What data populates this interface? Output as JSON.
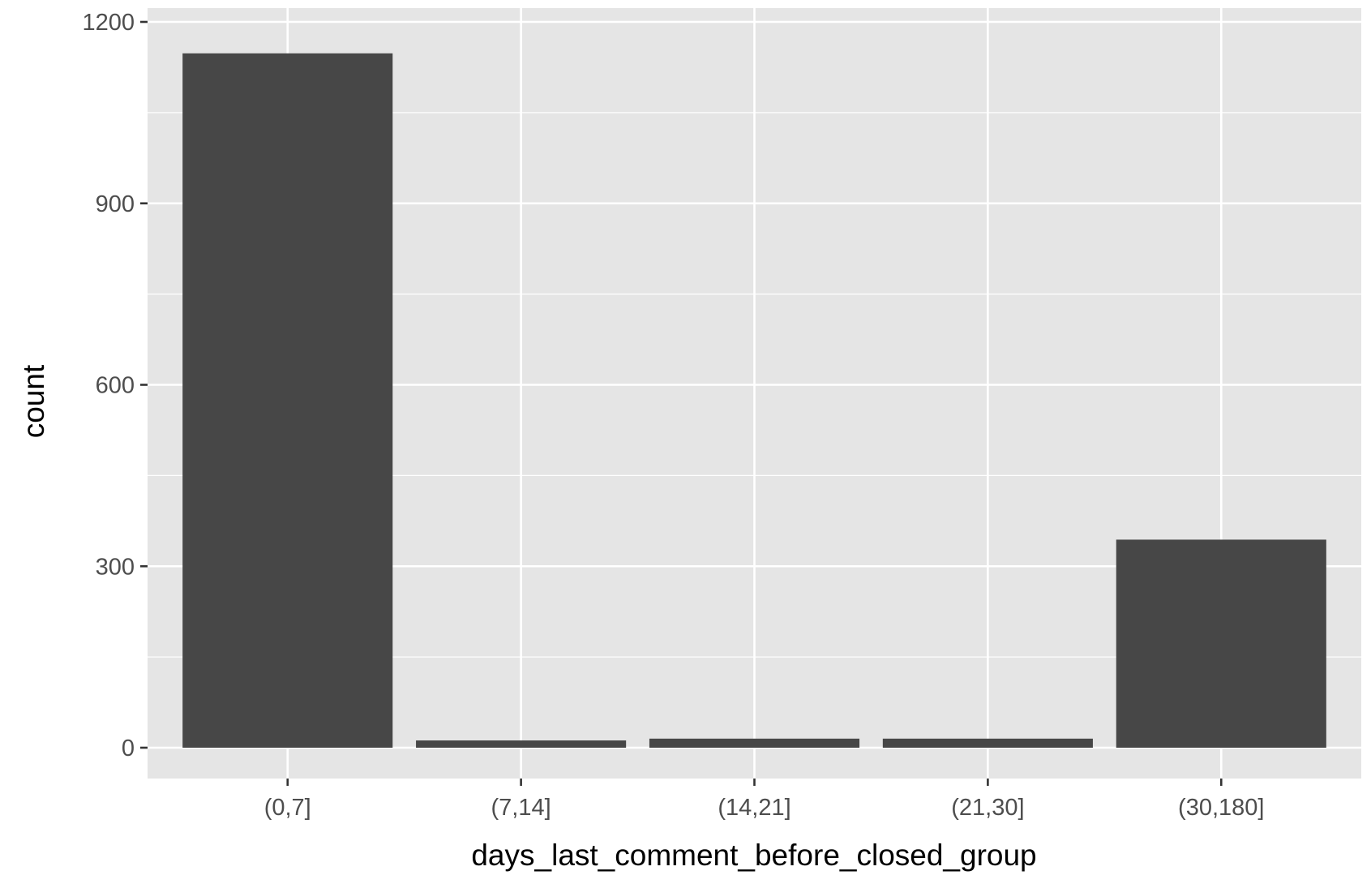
{
  "chart_data": {
    "type": "bar",
    "categories": [
      "(0,7]",
      "(7,14]",
      "(14,21]",
      "(21,30]",
      "(30,180]"
    ],
    "values": [
      1148,
      12,
      15,
      15,
      344
    ],
    "title": "",
    "xlabel": "days_last_comment_before_closed_group",
    "ylabel": "count",
    "ylim": [
      -55,
      1205
    ],
    "yticks": [
      0,
      300,
      600,
      900,
      1200
    ],
    "ytick_labels": [
      "0",
      "300",
      "600",
      "900",
      "1200"
    ],
    "grid": true,
    "legend": "none",
    "colors": {
      "bar": "#474747",
      "panel": "#e5e5e5",
      "grid": "#ffffff",
      "tick_label": "#4d4d4d",
      "axis_title": "#000000"
    }
  }
}
